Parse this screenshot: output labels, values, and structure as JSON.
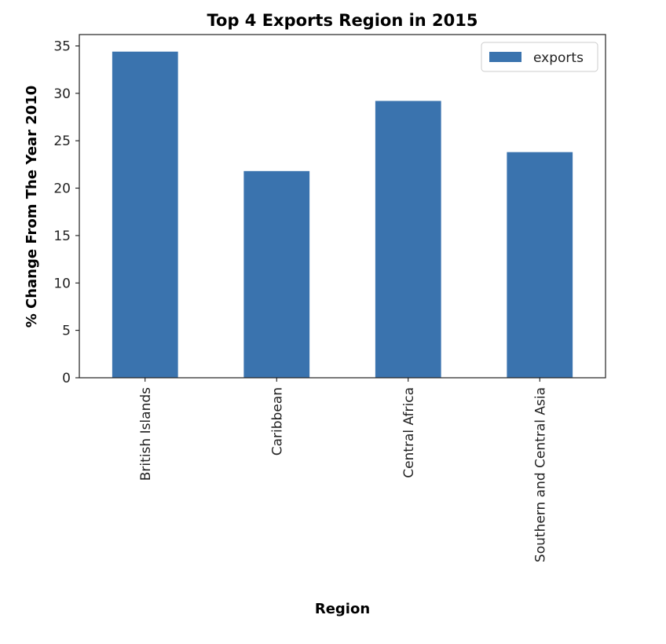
{
  "chart_data": {
    "type": "bar",
    "title": "Top 4 Exports Region in 2015",
    "xlabel": "Region",
    "ylabel": "% Change From The Year 2010",
    "categories": [
      "British Islands",
      "Caribbean",
      "Central Africa",
      "Southern and Central Asia"
    ],
    "series": [
      {
        "name": "exports",
        "values": [
          34.4,
          21.8,
          29.2,
          23.8
        ],
        "color": "#3a73ae"
      }
    ],
    "ylim": [
      0,
      36.2
    ],
    "yticks": [
      0,
      5,
      10,
      15,
      20,
      25,
      30,
      35
    ],
    "grid": false,
    "legend": {
      "position": "top-right",
      "entries": [
        "exports"
      ]
    }
  }
}
